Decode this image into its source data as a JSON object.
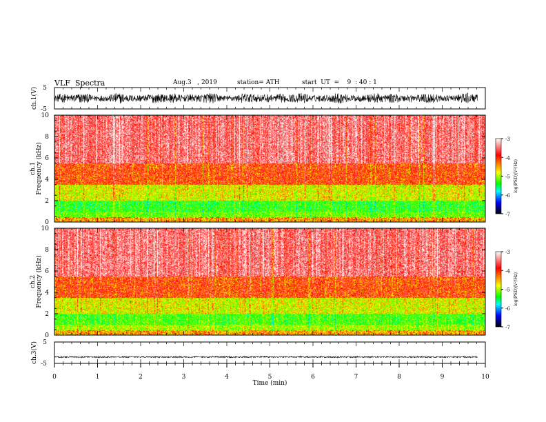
{
  "header": {
    "title": "VLF  Spectra",
    "date": "Aug.3   , 2019",
    "station": "station= ATH",
    "start": "start  UT  =    9  : 40 : 1"
  },
  "chart_data": [
    {
      "id": "ch1-waveform",
      "type": "line",
      "ylabel": "ch.1(V)",
      "ylim": [
        -5,
        5
      ],
      "yticks": [
        "5",
        "-5"
      ],
      "xlim": [
        0,
        10
      ],
      "description_level": "noisy broadband signal, peak-to-peak about ±2.5 V"
    },
    {
      "id": "ch1-spectrogram",
      "type": "heatmap",
      "ylabel": "ch.1\nFrequency  (kHz)",
      "ylabel_lines": [
        "ch.1",
        "Frequency  (kHz)"
      ],
      "ylim": [
        0,
        10
      ],
      "yticks": [
        "0",
        "2",
        "4",
        "6",
        "8",
        "10"
      ],
      "xlim": [
        0,
        10
      ],
      "colorbar": {
        "label": "log(PSD)(V²/Hz)",
        "range": [
          -7,
          -3
        ],
        "ticks": [
          "-3",
          "-4",
          "-5",
          "-6",
          "-7"
        ],
        "colors": [
          "#ffffff",
          "#ff0000",
          "#ffff00",
          "#00ff00",
          "#00ffff",
          "#0000ff",
          "#000000"
        ]
      },
      "band_levels_by_khz": [
        {
          "f": [
            0,
            0.5
          ],
          "level": -4.3
        },
        {
          "f": [
            0.5,
            1.0
          ],
          "level": -5.0
        },
        {
          "f": [
            1.0,
            2.0
          ],
          "level": -5.2
        },
        {
          "f": [
            2.0,
            3.5
          ],
          "level": -4.6
        },
        {
          "f": [
            3.5,
            5.5
          ],
          "level": -4.0
        },
        {
          "f": [
            5.5,
            10
          ],
          "level": -3.5
        }
      ]
    },
    {
      "id": "ch2-spectrogram",
      "type": "heatmap",
      "ylabel_lines": [
        "ch.2",
        "Frequency  (kHz)"
      ],
      "ylim": [
        0,
        10
      ],
      "yticks": [
        "0",
        "2",
        "4",
        "6",
        "8",
        "10"
      ],
      "xlim": [
        0,
        10
      ],
      "colorbar": {
        "label": "log(PSD)(V²/Hz)",
        "range": [
          -7,
          -3
        ],
        "ticks": [
          "-3",
          "-4",
          "-5",
          "-6",
          "-7"
        ]
      },
      "band_levels_by_khz": [
        {
          "f": [
            0,
            0.5
          ],
          "level": -4.3
        },
        {
          "f": [
            0.5,
            1.0
          ],
          "level": -4.8
        },
        {
          "f": [
            1.0,
            2.0
          ],
          "level": -5.1
        },
        {
          "f": [
            2.0,
            3.5
          ],
          "level": -4.6
        },
        {
          "f": [
            3.5,
            5.5
          ],
          "level": -4.0
        },
        {
          "f": [
            5.5,
            10
          ],
          "level": -3.5
        }
      ]
    },
    {
      "id": "ch3-waveform",
      "type": "line",
      "ylabel": "ch.3(V)",
      "ylim": [
        -5,
        5
      ],
      "yticks": [
        "5",
        "-5"
      ],
      "xlim": [
        0,
        10
      ],
      "offset": -2.0,
      "xlabel": "Time  (min)",
      "xticks": [
        "0",
        "1",
        "2",
        "3",
        "4",
        "5",
        "6",
        "7",
        "8",
        "9",
        "10"
      ]
    }
  ]
}
